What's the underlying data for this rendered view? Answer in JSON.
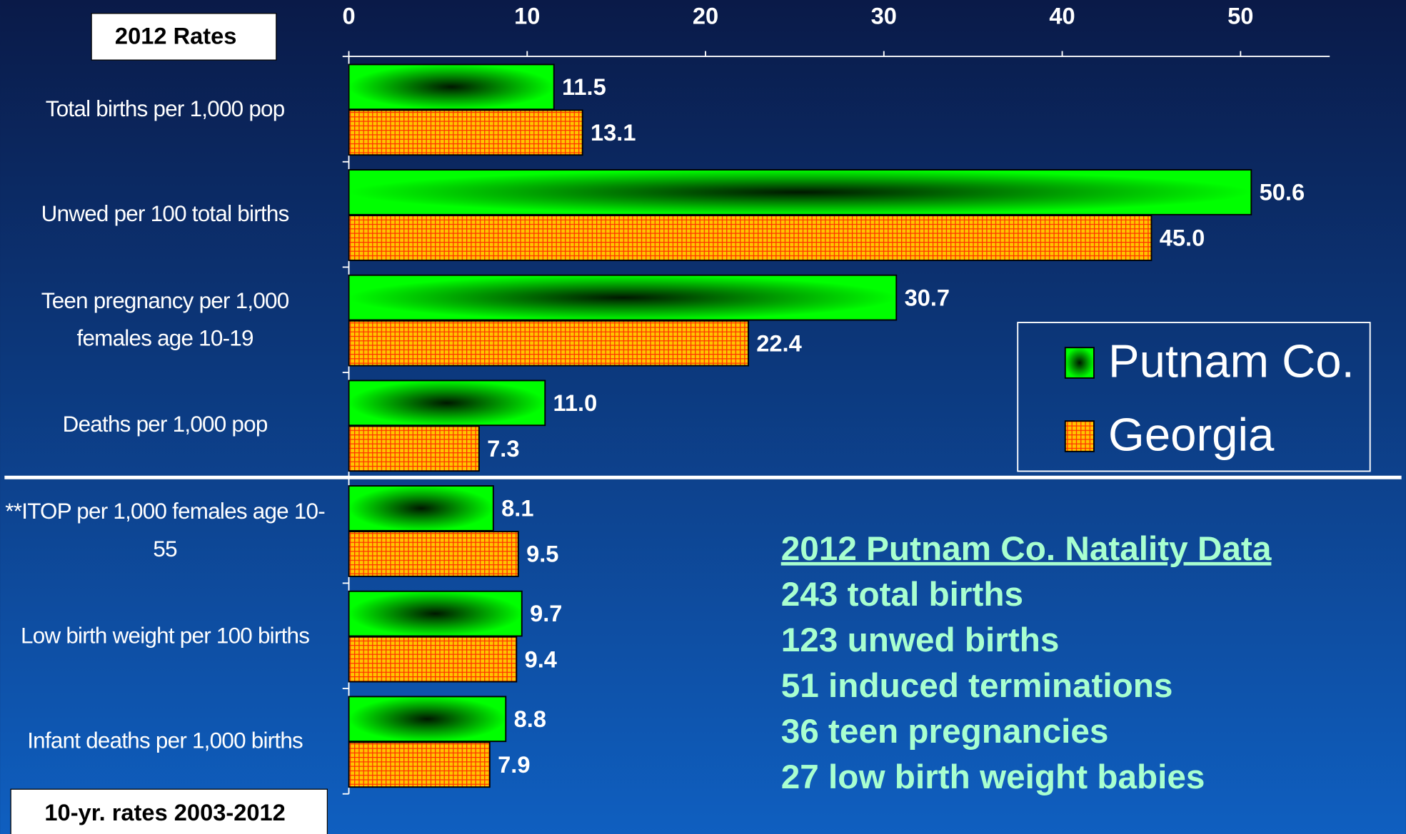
{
  "chart_data": {
    "type": "bar",
    "orientation": "horizontal",
    "title": "2012 Rates",
    "footnote": "10-yr. rates 2003-2012",
    "categories": [
      "Total births per 1,000 pop",
      "Unwed per 100 total births",
      "Teen pregnancy per 1,000 females age 10-19",
      "Deaths per 1,000 pop",
      "**ITOP per 1,000 females age 10-55",
      "Low birth weight per 100 births",
      "Infant deaths per 1,000 births"
    ],
    "series": [
      {
        "name": "Putnam Co.",
        "color": "#00ff00",
        "values": [
          11.5,
          50.6,
          30.7,
          11.0,
          8.1,
          9.7,
          8.8
        ],
        "value_labels": [
          "11.5",
          "50.6",
          "30.7",
          "11.0",
          "8.1",
          "9.7",
          "8.8"
        ]
      },
      {
        "name": "Georgia",
        "color": "#ffc000",
        "values": [
          13.1,
          45.0,
          22.4,
          7.3,
          9.5,
          9.4,
          7.9
        ],
        "value_labels": [
          "13.1",
          "45.0",
          "22.4",
          "7.3",
          "9.5",
          "9.4",
          "7.9"
        ]
      }
    ],
    "xlim": [
      0,
      55
    ],
    "xticks": [
      0,
      10,
      20,
      30,
      40,
      50
    ],
    "legend": "right",
    "annotation": {
      "title": "2012 Putnam Co. Natality Data",
      "lines": [
        "243 total births",
        "123 unwed births",
        "51 induced terminations",
        "36 teen pregnancies",
        "27 low birth weight babies"
      ]
    }
  }
}
